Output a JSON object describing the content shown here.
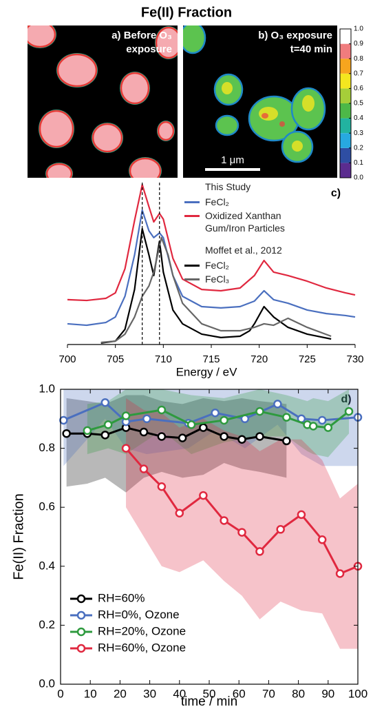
{
  "chart_data": [
    {
      "type": "image",
      "title": "Fe(II) Fraction",
      "panels": [
        {
          "label_lines": [
            "a) Before O₃",
            "exposure"
          ]
        },
        {
          "label_lines": [
            "b) O₃ exposure",
            "t=40 min"
          ]
        }
      ],
      "scale_bar": "1 μm",
      "colorbar": {
        "lim": [
          0,
          1
        ],
        "ticks": [
          {
            "value": 0,
            "label": "0.0"
          },
          0.1,
          0.2,
          0.3,
          0.4,
          0.5,
          0.6,
          0.7,
          0.8,
          0.9,
          {
            "value": 1,
            "label": "1.0"
          }
        ],
        "colors": [
          "#5b2c8f",
          "#2e4ea3",
          "#27a9e1",
          "#22b3a0",
          "#4db848",
          "#a6ce39",
          "#f4e61f",
          "#f7a51e",
          "#f07c7e",
          "#ffffff"
        ]
      }
    },
    {
      "type": "line",
      "panel_label": "c)",
      "xlabel": "Energy / eV",
      "xlim": [
        700,
        730
      ],
      "xticks": [
        700,
        705,
        710,
        715,
        720,
        725,
        730
      ],
      "ylim": [
        0,
        1
      ],
      "vlines": [
        707.8,
        709.6
      ],
      "legend_headings": [
        "This Study",
        "Moffet et al., 2012"
      ],
      "series": [
        {
          "name": "FeCl₂",
          "color": "#4a6fbf",
          "x": [
            700,
            702,
            704,
            705,
            706,
            707,
            707.8,
            708.5,
            709,
            709.6,
            710,
            711,
            712,
            714,
            716,
            718,
            719.5,
            720.5,
            721.5,
            723,
            725,
            727,
            729,
            730
          ],
          "values": [
            0.128,
            0.119,
            0.136,
            0.17,
            0.298,
            0.553,
            0.83,
            0.702,
            0.66,
            0.689,
            0.66,
            0.426,
            0.298,
            0.234,
            0.226,
            0.234,
            0.268,
            0.332,
            0.277,
            0.255,
            0.213,
            0.191,
            0.179,
            0.17
          ]
        },
        {
          "name": "Oxidized Xanthan Gum/Iron Particles",
          "color": "#e0283f",
          "x": [
            700,
            702,
            704,
            705,
            706,
            707,
            707.8,
            708.5,
            709,
            709.6,
            710,
            711,
            712,
            714,
            716,
            718,
            719.5,
            720.5,
            721.5,
            723,
            725,
            727,
            729,
            730
          ],
          "values": [
            0.277,
            0.272,
            0.285,
            0.319,
            0.468,
            0.766,
            0.987,
            0.851,
            0.757,
            0.809,
            0.774,
            0.532,
            0.404,
            0.34,
            0.332,
            0.349,
            0.426,
            0.519,
            0.447,
            0.426,
            0.391,
            0.349,
            0.319,
            0.306
          ]
        },
        {
          "name": "FeCl₂",
          "color": "#000000",
          "x": [
            703.5,
            705,
            706,
            707,
            707.8,
            708.5,
            709,
            709.6,
            710,
            711,
            712,
            714,
            716,
            718,
            719,
            719.5,
            720.5,
            721.5,
            723,
            725,
            727.5
          ],
          "values": [
            0.009,
            0.021,
            0.094,
            0.34,
            0.715,
            0.553,
            0.426,
            0.638,
            0.447,
            0.213,
            0.128,
            0.064,
            0.043,
            0.051,
            0.085,
            0.128,
            0.234,
            0.17,
            0.106,
            0.064,
            0.034
          ]
        },
        {
          "name": "FeCl₃",
          "color": "#666666",
          "x": [
            703.5,
            705,
            706,
            707,
            707.8,
            708.5,
            709,
            709.8,
            710.5,
            711,
            712,
            714,
            716,
            718,
            719.5,
            720.5,
            721.5,
            723,
            725,
            727.5
          ],
          "values": [
            0.013,
            0.021,
            0.064,
            0.17,
            0.298,
            0.362,
            0.447,
            0.66,
            0.553,
            0.426,
            0.255,
            0.128,
            0.085,
            0.085,
            0.106,
            0.128,
            0.119,
            0.162,
            0.106,
            0.051
          ]
        }
      ]
    },
    {
      "type": "line",
      "panel_label": "d)",
      "xlabel": "time / min",
      "ylabel": "Fe(II) Fraction",
      "xlim": [
        0,
        100
      ],
      "xticks": [
        0,
        10,
        20,
        30,
        40,
        50,
        60,
        70,
        80,
        90,
        100
      ],
      "ylim": [
        0,
        1
      ],
      "yticks": [
        {
          "value": 0,
          "label": "0.0"
        },
        0.2,
        0.4,
        0.6,
        0.8,
        {
          "value": 1,
          "label": "1.0"
        }
      ],
      "legend": "lower left",
      "markers": true,
      "series": [
        {
          "name": "RH=60%",
          "color": "#000000",
          "x": [
            2,
            9,
            15,
            22,
            28,
            34,
            41,
            48,
            55,
            61,
            67,
            76
          ],
          "values": [
            0.85,
            0.85,
            0.845,
            0.87,
            0.855,
            0.84,
            0.835,
            0.87,
            0.84,
            0.83,
            0.84,
            0.825
          ],
          "band_lower": [
            0.67,
            0.68,
            0.7,
            0.65,
            0.7,
            0.72,
            0.7,
            0.71,
            0.75,
            0.73,
            0.72,
            0.7
          ],
          "band_upper": [
            0.97,
            0.96,
            0.95,
            0.98,
            0.98,
            0.96,
            0.95,
            0.97,
            0.96,
            0.97,
            0.96,
            0.95
          ]
        },
        {
          "name": "RH=0%, Ozone",
          "color": "#4a6fbf",
          "x": [
            1,
            15,
            22,
            29,
            43,
            52,
            62,
            73,
            81,
            88,
            100
          ],
          "values": [
            0.895,
            0.955,
            0.89,
            0.9,
            0.885,
            0.92,
            0.9,
            0.95,
            0.9,
            0.895,
            0.905
          ],
          "band_lower": [
            0.74,
            0.9,
            0.8,
            0.78,
            0.8,
            0.86,
            0.8,
            0.88,
            0.78,
            0.74,
            0.74
          ],
          "band_upper": [
            1,
            1,
            1,
            1,
            1,
            1,
            1,
            1,
            1,
            1,
            1
          ]
        },
        {
          "name": "RH=20%, Ozone",
          "color": "#2e9a3e",
          "x": [
            9,
            16,
            22,
            34,
            44,
            55,
            67,
            76,
            83,
            85,
            90,
            97
          ],
          "values": [
            0.86,
            0.88,
            0.91,
            0.93,
            0.88,
            0.895,
            0.925,
            0.905,
            0.88,
            0.875,
            0.87,
            0.925
          ],
          "band_lower": [
            0.78,
            0.8,
            0.78,
            0.86,
            0.78,
            0.82,
            0.84,
            0.84,
            0.79,
            0.78,
            0.77,
            0.85
          ],
          "band_upper": [
            0.95,
            0.96,
            1,
            1,
            0.98,
            0.97,
            1,
            0.98,
            0.96,
            0.97,
            0.96,
            1
          ]
        },
        {
          "name": "RH=60%, Ozone",
          "color": "#e0283f",
          "x": [
            22,
            28,
            34,
            40,
            48,
            55,
            61,
            67,
            74,
            81,
            88,
            94,
            100
          ],
          "values": [
            0.8,
            0.73,
            0.67,
            0.58,
            0.64,
            0.555,
            0.515,
            0.45,
            0.525,
            0.575,
            0.49,
            0.375,
            0.4
          ],
          "band_lower": [
            0.6,
            0.5,
            0.4,
            0.38,
            0.42,
            0.35,
            0.3,
            0.22,
            0.28,
            0.25,
            0.24,
            0.12,
            0.12
          ],
          "band_upper": [
            0.97,
            0.93,
            0.92,
            0.87,
            0.9,
            0.86,
            0.84,
            0.79,
            0.83,
            0.83,
            0.76,
            0.63,
            0.68
          ]
        }
      ]
    }
  ]
}
